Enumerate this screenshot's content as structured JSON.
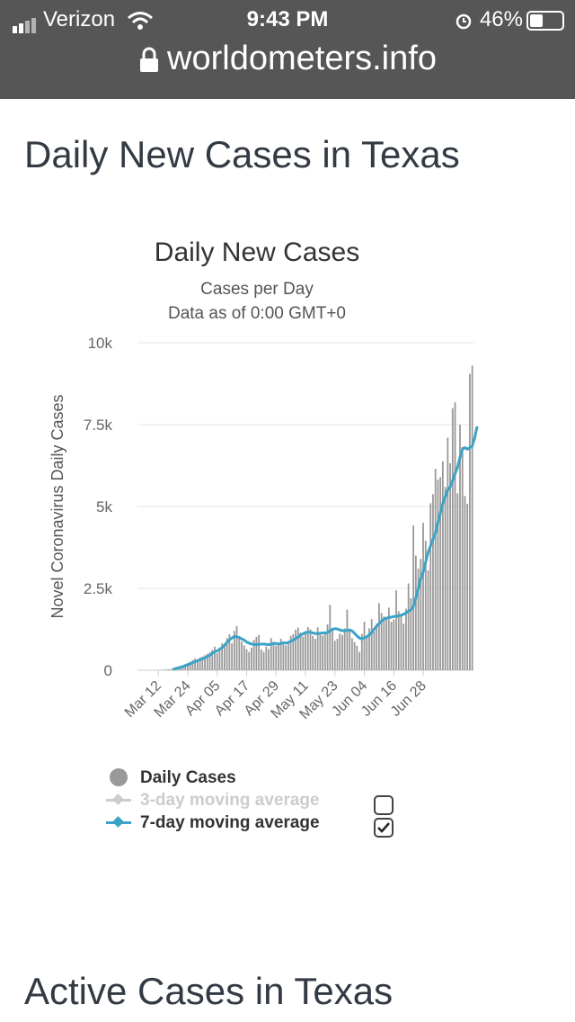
{
  "status": {
    "carrier": "Verizon",
    "time": "9:43 PM",
    "battery": "46%"
  },
  "browser": {
    "url": "worldometers.info"
  },
  "page": {
    "heading": "Daily New Cases in Texas",
    "next_heading": "Active Cases in Texas"
  },
  "chart_data": {
    "type": "bar",
    "title": "Daily New Cases",
    "subtitle": "Cases per Day",
    "subtitle2": "Data as of 0:00 GMT+0",
    "ylabel": "Novel Coronavirus Daily Cases",
    "xlabel": "",
    "ylim": [
      0,
      10000
    ],
    "y_ticks": [
      0,
      2500,
      5000,
      7500,
      10000
    ],
    "y_tick_labels": [
      "0",
      "2.5k",
      "5k",
      "7.5k",
      "10k"
    ],
    "x_tick_labels": [
      "Mar 12",
      "Mar 24",
      "Apr 05",
      "Apr 17",
      "Apr 29",
      "May 11",
      "May 23",
      "Jun 04",
      "Jun 16",
      "Jun 28"
    ],
    "grid": true,
    "legend_position": "bottom",
    "start_date": "2020-03-04",
    "colors": {
      "bars": "#999999",
      "avg7": "#3ba3c8",
      "avg3_disabled": "#cccccc",
      "grid": "#e6e6e6"
    },
    "series": [
      {
        "name": "Daily Cases",
        "values": [
          0,
          0,
          0,
          0,
          0,
          0,
          0,
          2,
          5,
          10,
          15,
          20,
          30,
          40,
          60,
          80,
          90,
          110,
          150,
          190,
          220,
          260,
          310,
          360,
          300,
          390,
          420,
          460,
          500,
          540,
          620,
          720,
          520,
          680,
          820,
          760,
          980,
          1100,
          820,
          1200,
          1350,
          960,
          880,
          760,
          640,
          560,
          690,
          930,
          1020,
          1080,
          640,
          560,
          720,
          650,
          980,
          870,
          750,
          830,
          960,
          880,
          760,
          820,
          1050,
          1100,
          1240,
          1300,
          1150,
          1030,
          1180,
          1320,
          1250,
          1050,
          960,
          1310,
          1120,
          1060,
          1180,
          1400,
          2000,
          1250,
          900,
          960,
          1120,
          1080,
          1280,
          1850,
          1240,
          980,
          860,
          750,
          560,
          1110,
          1480,
          1000,
          1280,
          1560,
          1180,
          1420,
          2050,
          1750,
          1640,
          1560,
          1910,
          1480,
          1550,
          2440,
          1800,
          1650,
          1420,
          1880,
          2650,
          2200,
          4420,
          3500,
          3100,
          3400,
          4500,
          3950,
          3050,
          5100,
          5380,
          6150,
          5820,
          5900,
          6380,
          5600,
          7100,
          6320,
          8000,
          8180,
          5400,
          7500,
          6820,
          5320,
          5080,
          9050,
          9300
        ]
      },
      {
        "name": "3-day moving average",
        "enabled": false
      },
      {
        "name": "7-day moving average",
        "enabled": true,
        "values": [
          0,
          0,
          0,
          0,
          0,
          0,
          0,
          0,
          0,
          0,
          0,
          0,
          0,
          0,
          30,
          50,
          70,
          90,
          110,
          140,
          170,
          200,
          230,
          260,
          290,
          320,
          350,
          380,
          420,
          460,
          520,
          560,
          590,
          640,
          690,
          760,
          850,
          930,
          980,
          1030,
          1020,
          1000,
          960,
          920,
          860,
          830,
          800,
          790,
          780,
          790,
          800,
          800,
          790,
          780,
          800,
          810,
          820,
          800,
          820,
          840,
          830,
          850,
          880,
          920,
          970,
          1010,
          1070,
          1110,
          1150,
          1160,
          1160,
          1140,
          1120,
          1120,
          1130,
          1140,
          1140,
          1150,
          1200,
          1250,
          1270,
          1260,
          1230,
          1210,
          1200,
          1220,
          1230,
          1200,
          1130,
          1050,
          980,
          960,
          990,
          1020,
          1080,
          1150,
          1250,
          1350,
          1420,
          1500,
          1560,
          1590,
          1610,
          1620,
          1640,
          1650,
          1660,
          1680,
          1710,
          1750,
          1800,
          1850,
          1950,
          2200,
          2500,
          2800,
          3000,
          3300,
          3600,
          3800,
          4000,
          4200,
          4500,
          4800,
          5100,
          5300,
          5500,
          5600,
          5800,
          6000,
          6200,
          6500,
          6750,
          6800,
          6750,
          6800,
          6850,
          7100,
          7450
        ]
      }
    ]
  }
}
